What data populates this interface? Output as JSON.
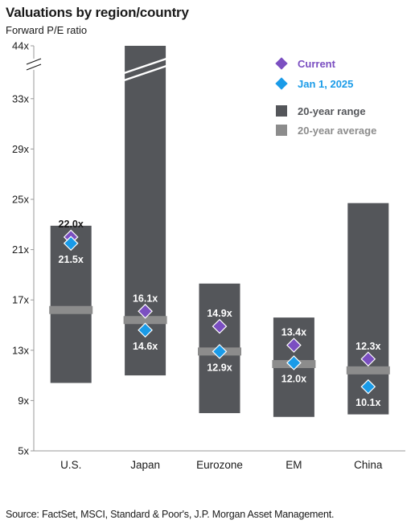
{
  "title": "Valuations by region/country",
  "subtitle": "Forward P/E ratio",
  "source": "Source: FactSet, MSCI, Standard & Poor's, J.P. Morgan Asset Management.",
  "colors": {
    "range": "#54565a",
    "average": "#8c8c8c",
    "current": "#7b4fc1",
    "jan": "#1a9be8",
    "axis": "#999999"
  },
  "chart_data": {
    "type": "range-bar",
    "categories": [
      "U.S.",
      "Japan",
      "Eurozone",
      "EM",
      "China"
    ],
    "y_axis": {
      "ticks": [
        5,
        9,
        13,
        17,
        21,
        25,
        29,
        33,
        44
      ],
      "tick_labels": [
        "5x",
        "9x",
        "13x",
        "17x",
        "21x",
        "25x",
        "29x",
        "33x",
        "44x"
      ],
      "axis_break": "between 33x and 44x"
    },
    "range_20yr": [
      {
        "low": 10.4,
        "high": 22.9
      },
      {
        "low": 11.0,
        "high": 44.0
      },
      {
        "low": 8.0,
        "high": 18.3
      },
      {
        "low": 7.7,
        "high": 15.6
      },
      {
        "low": 7.9,
        "high": 24.7
      }
    ],
    "average_20yr": [
      16.2,
      15.4,
      12.9,
      11.9,
      11.4
    ],
    "current": [
      22.0,
      16.1,
      14.9,
      13.4,
      12.3
    ],
    "current_labels": [
      "22.0x",
      "16.1x",
      "14.9x",
      "13.4x",
      "12.3x"
    ],
    "jan_2025": [
      21.5,
      14.6,
      12.9,
      12.0,
      10.1
    ],
    "jan_2025_labels": [
      "21.5x",
      "14.6x",
      "12.9x",
      "12.0x",
      "10.1x"
    ],
    "legend": {
      "current": "Current",
      "jan": "Jan 1, 2025",
      "range": "20-year range",
      "average": "20-year average",
      "placement": "top-right"
    },
    "grid": false
  }
}
